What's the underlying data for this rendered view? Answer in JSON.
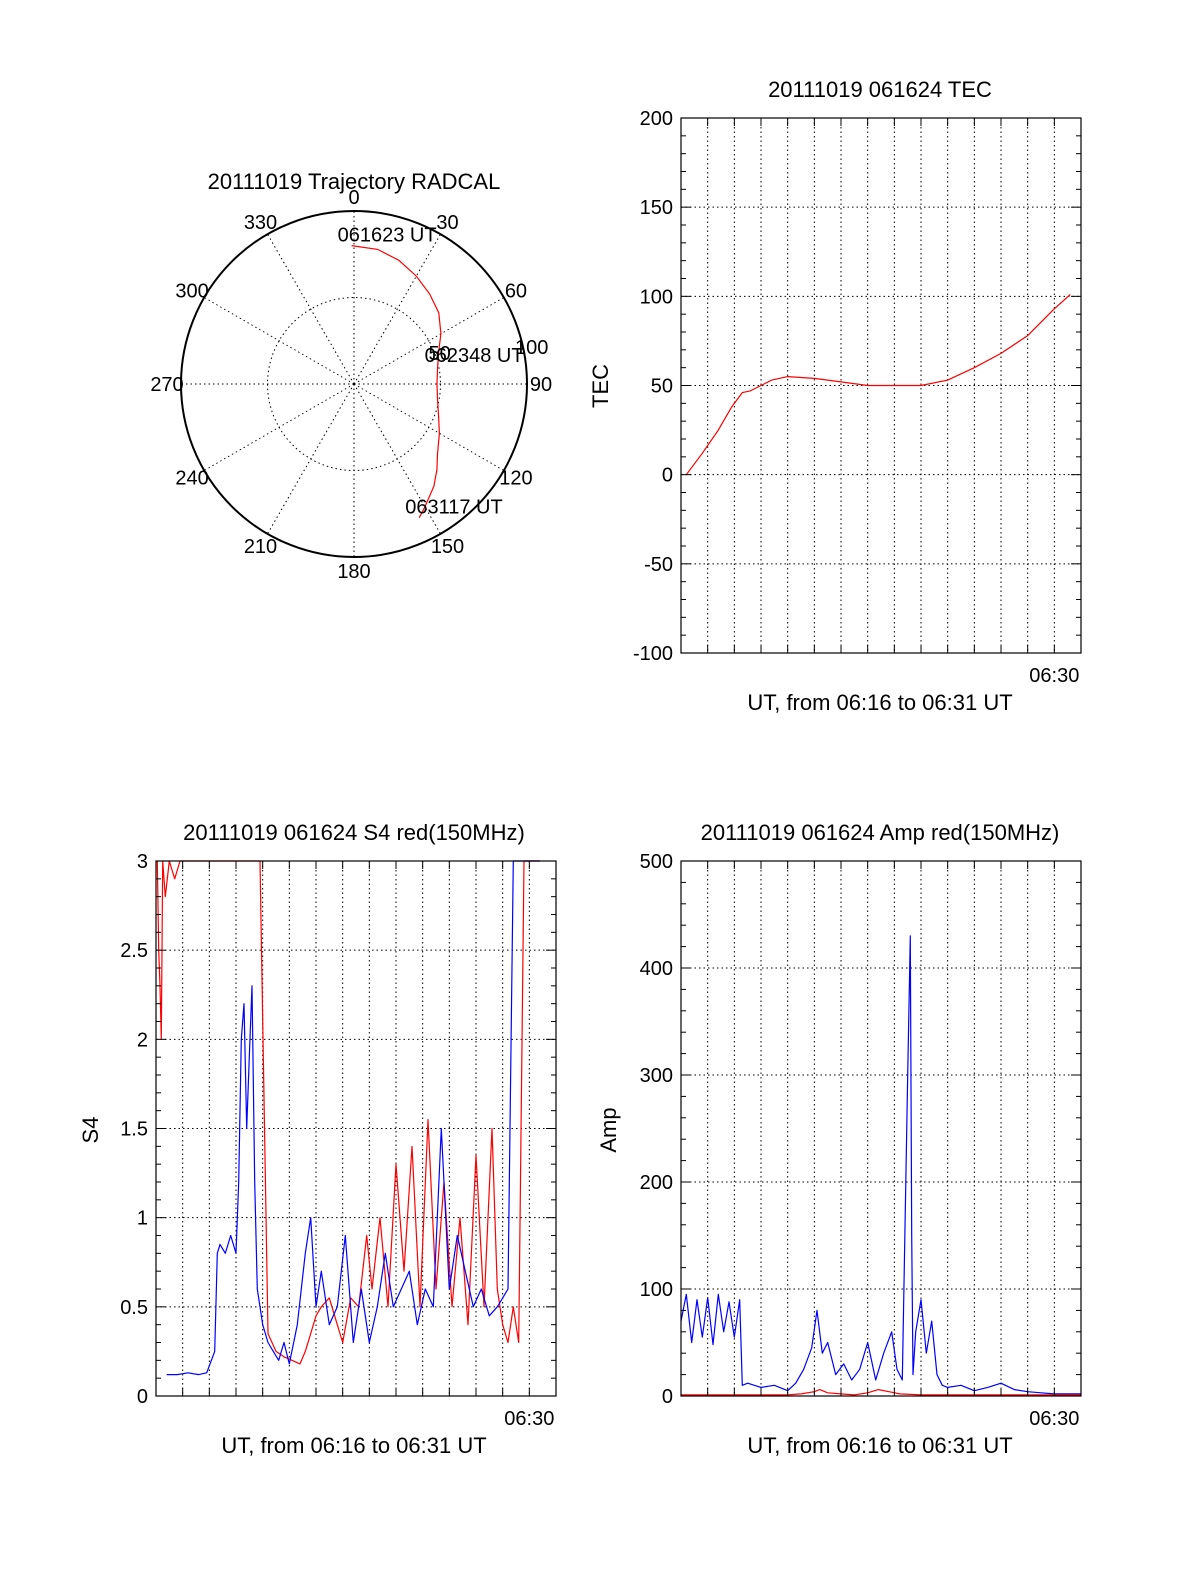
{
  "chart_data": [
    {
      "type": "polar",
      "title": "20111019 Trajectory RADCAL",
      "angle_labels": [
        "0",
        "30",
        "60",
        "90",
        "120",
        "150",
        "180",
        "210",
        "240",
        "270",
        "300",
        "330"
      ],
      "radius_labels": [
        "50",
        "100"
      ],
      "rmax": 100,
      "trajectory": {
        "color": "#ff0000",
        "points": [
          [
            -1,
            80
          ],
          [
            10,
            79
          ],
          [
            20,
            76
          ],
          [
            30,
            72
          ],
          [
            40,
            68
          ],
          [
            50,
            64
          ],
          [
            60,
            58
          ],
          [
            70,
            52
          ],
          [
            80,
            49
          ],
          [
            90,
            48
          ],
          [
            100,
            49
          ],
          [
            110,
            52
          ],
          [
            120,
            57
          ],
          [
            130,
            63
          ],
          [
            136,
            69
          ],
          [
            142,
            75
          ],
          [
            150,
            82
          ],
          [
            154,
            86
          ]
        ]
      },
      "annotations": [
        {
          "text": "061623 UT",
          "at": [
            -1,
            80
          ]
        },
        {
          "text": "062348 UT",
          "at": [
            78,
            50
          ]
        },
        {
          "text": "063117 UT",
          "at": [
            154,
            86
          ]
        }
      ]
    },
    {
      "type": "line",
      "title": "20111019 061624 TEC",
      "xlabel": "UT, from 06:16 to 06:31 UT",
      "ylabel": "TEC",
      "ylim": [
        -100,
        200
      ],
      "yticks": [
        "-100",
        "-50",
        "0",
        "50",
        "100",
        "150",
        "200"
      ],
      "xticks": [
        {
          "label": "06:30",
          "t": 14.0
        }
      ],
      "xlim": [
        0,
        15
      ],
      "series": [
        {
          "color": "#ff0000",
          "x": [
            0.2,
            0.8,
            1.4,
            1.9,
            2.3,
            2.6,
            3.0,
            3.4,
            4.0,
            5.0,
            6.0,
            7.0,
            8.0,
            9.0,
            10.0,
            11.0,
            12.0,
            13.0,
            14.0,
            14.6
          ],
          "y": [
            0,
            12,
            25,
            38,
            46,
            47,
            50,
            53,
            55,
            54,
            52,
            50,
            50,
            50,
            53,
            60,
            68,
            78,
            93,
            101
          ]
        }
      ]
    },
    {
      "type": "line",
      "title": "20111019 061624 S4 red(150MHz)",
      "xlabel": "UT, from 06:16 to 06:31 UT",
      "ylabel": "S4",
      "ylim": [
        0,
        3
      ],
      "yticks": [
        "0",
        "0.5",
        "1",
        "1.5",
        "2",
        "2.5",
        "3"
      ],
      "xticks": [
        {
          "label": "06:30",
          "t": 14.0
        }
      ],
      "xlim": [
        0,
        15
      ],
      "series": [
        {
          "color": "#ff0000",
          "x": [
            0.05,
            0.1,
            0.15,
            0.2,
            0.25,
            0.35,
            0.5,
            0.7,
            0.9,
            1.2,
            1.5,
            1.8,
            2.1,
            2.4,
            2.6,
            2.9,
            3.1,
            3.3,
            3.5,
            3.7,
            3.9,
            4.2,
            4.5,
            4.8,
            5.1,
            5.4,
            5.6,
            5.8,
            6.0,
            6.2,
            6.5,
            6.8,
            7.0,
            7.3,
            7.6,
            7.9,
            8.1,
            8.4,
            8.7,
            9.0,
            9.3,
            9.6,
            9.9,
            10.2,
            10.5,
            10.8,
            11.1,
            11.4,
            11.7,
            12.0,
            12.3,
            12.6,
            12.8,
            13.0,
            13.2,
            13.4,
            13.6,
            13.8,
            14.0,
            14.2,
            14.4
          ],
          "y": [
            3.0,
            2.5,
            2.3,
            2.0,
            3.0,
            2.8,
            3.0,
            2.9,
            3.0,
            3.0,
            3.0,
            3.0,
            3.0,
            3.0,
            3.0,
            3.0,
            3.0,
            3.0,
            3.0,
            3.0,
            3.0,
            0.35,
            0.25,
            0.22,
            0.2,
            0.18,
            0.25,
            0.35,
            0.45,
            0.5,
            0.55,
            0.4,
            0.3,
            0.55,
            0.5,
            0.9,
            0.6,
            1.0,
            0.5,
            1.3,
            0.7,
            1.4,
            0.5,
            1.55,
            0.6,
            1.2,
            0.5,
            1.0,
            0.4,
            1.35,
            0.5,
            1.5,
            0.6,
            0.4,
            0.3,
            0.5,
            0.3,
            3.0,
            3.0,
            3.0,
            3.0
          ]
        },
        {
          "color": "#0000ff",
          "x": [
            0.4,
            0.8,
            1.2,
            1.6,
            1.9,
            2.2,
            2.3,
            2.4,
            2.6,
            2.8,
            3.0,
            3.1,
            3.2,
            3.3,
            3.4,
            3.5,
            3.6,
            3.7,
            3.8,
            4.0,
            4.2,
            4.4,
            4.6,
            4.8,
            5.0,
            5.3,
            5.6,
            5.8,
            6.0,
            6.2,
            6.5,
            6.8,
            7.1,
            7.4,
            7.7,
            8.0,
            8.3,
            8.6,
            8.9,
            9.2,
            9.5,
            9.8,
            10.1,
            10.4,
            10.7,
            11.0,
            11.3,
            11.6,
            11.9,
            12.2,
            12.5,
            12.8,
            13.0,
            13.2,
            13.4,
            13.6,
            13.8,
            14.0,
            14.2,
            14.4
          ],
          "y": [
            0.12,
            0.12,
            0.13,
            0.12,
            0.13,
            0.25,
            0.8,
            0.85,
            0.8,
            0.9,
            0.8,
            1.2,
            2.0,
            2.2,
            1.5,
            1.9,
            2.3,
            1.2,
            0.6,
            0.4,
            0.3,
            0.25,
            0.2,
            0.3,
            0.18,
            0.4,
            0.8,
            1.0,
            0.5,
            0.7,
            0.4,
            0.5,
            0.9,
            0.3,
            0.6,
            0.3,
            0.5,
            0.8,
            0.5,
            0.6,
            0.7,
            0.4,
            0.6,
            0.5,
            1.5,
            0.6,
            0.9,
            0.7,
            0.5,
            0.6,
            0.45,
            0.5,
            0.55,
            0.6,
            3.0,
            3.0,
            3.0,
            3.0,
            3.0,
            3.0
          ]
        }
      ]
    },
    {
      "type": "line",
      "title": "20111019 061624 Amp red(150MHz)",
      "xlabel": "UT, from 06:16 to 06:31 UT",
      "ylabel": "Amp",
      "ylim": [
        0,
        500
      ],
      "yticks": [
        "0",
        "100",
        "200",
        "300",
        "400",
        "500"
      ],
      "xticks": [
        {
          "label": "06:30",
          "t": 14.0
        }
      ],
      "xlim": [
        0,
        15
      ],
      "series": [
        {
          "color": "#0000ff",
          "x": [
            0.0,
            0.2,
            0.4,
            0.6,
            0.8,
            1.0,
            1.2,
            1.4,
            1.6,
            1.8,
            2.0,
            2.2,
            2.3,
            2.5,
            3.0,
            3.5,
            4.0,
            4.3,
            4.6,
            4.9,
            5.1,
            5.3,
            5.5,
            5.8,
            6.1,
            6.4,
            6.7,
            7.0,
            7.3,
            7.6,
            7.9,
            8.1,
            8.3,
            8.5,
            8.6,
            8.65,
            8.7,
            8.8,
            9.0,
            9.2,
            9.4,
            9.6,
            9.8,
            10.0,
            10.5,
            11.0,
            11.5,
            12.0,
            12.5,
            13.0,
            13.5,
            14.0,
            14.5,
            15.0
          ],
          "y": [
            70,
            95,
            50,
            90,
            55,
            92,
            48,
            95,
            60,
            88,
            55,
            90,
            10,
            12,
            8,
            10,
            5,
            12,
            25,
            45,
            80,
            40,
            50,
            20,
            30,
            15,
            25,
            50,
            15,
            40,
            60,
            25,
            15,
            300,
            430,
            150,
            20,
            60,
            90,
            40,
            70,
            20,
            10,
            8,
            10,
            5,
            8,
            12,
            6,
            4,
            3,
            2,
            2,
            2
          ]
        },
        {
          "color": "#ff0000",
          "x": [
            0.0,
            2.0,
            4.0,
            4.5,
            5.0,
            5.2,
            5.5,
            6.0,
            6.5,
            7.0,
            7.4,
            7.8,
            8.2,
            9.0,
            10.0,
            12.0,
            15.0
          ],
          "y": [
            1,
            1,
            1,
            2,
            4,
            6,
            3,
            2,
            1,
            3,
            6,
            4,
            2,
            1,
            1,
            1,
            1
          ]
        }
      ]
    }
  ]
}
